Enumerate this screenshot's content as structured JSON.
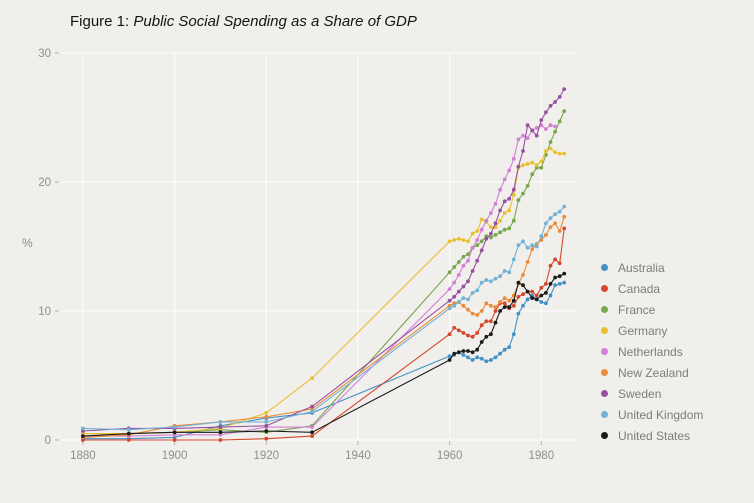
{
  "title": {
    "prefix": "Figure 1: ",
    "text": "Public Social Spending as a Share of GDP"
  },
  "colors": {
    "background": "#f1efec",
    "grid": "#fcfbfa",
    "tick_text": "#8e8e8e",
    "tick_mark": "#b5b2ad",
    "legend_text": "#7c7c7c",
    "title_text": "#141414"
  },
  "chart_data": {
    "type": "line",
    "title": "Figure 1: Public Social Spending as a Share of GDP",
    "xlabel": "",
    "ylabel": "%",
    "xlim": [
      1875,
      1988
    ],
    "ylim": [
      0,
      30
    ],
    "x_ticks": [
      1880,
      1900,
      1920,
      1940,
      1960,
      1980
    ],
    "y_ticks": [
      0,
      10,
      20,
      30
    ],
    "grid": true,
    "legend_position": "right",
    "series": [
      {
        "name": "Australia",
        "color": "#4292c6",
        "x": [
          1880,
          1890,
          1900,
          1910,
          1920,
          1930,
          1960,
          1961,
          1962,
          1963,
          1964,
          1965,
          1966,
          1967,
          1968,
          1969,
          1970,
          1971,
          1972,
          1973,
          1974,
          1975,
          1976,
          1977,
          1978,
          1979,
          1980,
          1981,
          1982,
          1983,
          1984,
          1985
        ],
        "y": [
          0.1,
          0.1,
          0.2,
          1.1,
          1.7,
          2.1,
          6.5,
          6.6,
          6.8,
          6.6,
          6.4,
          6.2,
          6.4,
          6.3,
          6.1,
          6.2,
          6.4,
          6.7,
          7.0,
          7.2,
          8.2,
          9.8,
          10.4,
          10.9,
          11.2,
          10.9,
          10.7,
          10.6,
          11.2,
          12.0,
          12.1,
          12.2
        ]
      },
      {
        "name": "Canada",
        "color": "#d5472c",
        "x": [
          1880,
          1890,
          1900,
          1910,
          1920,
          1930,
          1960,
          1961,
          1962,
          1963,
          1964,
          1965,
          1966,
          1967,
          1968,
          1969,
          1970,
          1971,
          1972,
          1973,
          1974,
          1975,
          1976,
          1977,
          1978,
          1979,
          1980,
          1981,
          1982,
          1983,
          1984,
          1985
        ],
        "y": [
          0.0,
          0.0,
          0.0,
          0.0,
          0.1,
          0.3,
          8.2,
          8.7,
          8.5,
          8.3,
          8.1,
          8.0,
          8.3,
          8.9,
          9.2,
          9.2,
          10.0,
          10.6,
          10.6,
          10.2,
          10.4,
          11.1,
          11.3,
          11.5,
          11.5,
          11.2,
          11.8,
          12.1,
          13.5,
          14.0,
          13.7,
          16.4
        ]
      },
      {
        "name": "France",
        "color": "#76a84b",
        "x": [
          1880,
          1890,
          1900,
          1910,
          1920,
          1930,
          1960,
          1961,
          1962,
          1963,
          1964,
          1965,
          1966,
          1967,
          1968,
          1969,
          1970,
          1971,
          1972,
          1973,
          1974,
          1975,
          1976,
          1977,
          1978,
          1979,
          1980,
          1981,
          1982,
          1983,
          1984,
          1985
        ],
        "y": [
          0.5,
          0.5,
          0.6,
          0.8,
          0.6,
          1.1,
          13.0,
          13.4,
          13.8,
          14.2,
          14.4,
          14.9,
          15.1,
          15.4,
          15.8,
          15.7,
          15.9,
          16.1,
          16.3,
          16.4,
          17.0,
          18.6,
          19.1,
          19.7,
          20.6,
          21.1,
          21.1,
          22.1,
          23.1,
          23.9,
          24.7,
          25.5
        ]
      },
      {
        "name": "Germany",
        "color": "#e7c12f",
        "x": [
          1880,
          1890,
          1900,
          1910,
          1920,
          1930,
          1960,
          1961,
          1962,
          1963,
          1964,
          1965,
          1966,
          1967,
          1968,
          1969,
          1970,
          1971,
          1972,
          1973,
          1974,
          1975,
          1976,
          1977,
          1978,
          1979,
          1980,
          1981,
          1982,
          1983,
          1984,
          1985
        ],
        "y": [
          0.5,
          0.5,
          0.6,
          0.9,
          2.1,
          4.8,
          15.4,
          15.5,
          15.6,
          15.5,
          15.4,
          16.0,
          16.2,
          17.1,
          16.9,
          16.5,
          16.5,
          17.0,
          17.6,
          17.8,
          19.0,
          21.1,
          21.3,
          21.4,
          21.5,
          21.3,
          21.6,
          22.4,
          22.6,
          22.3,
          22.2,
          22.2
        ]
      },
      {
        "name": "Netherlands",
        "color": "#d27fd8",
        "x": [
          1880,
          1890,
          1900,
          1910,
          1920,
          1930,
          1960,
          1961,
          1962,
          1963,
          1964,
          1965,
          1966,
          1967,
          1968,
          1969,
          1970,
          1971,
          1972,
          1973,
          1974,
          1975,
          1976,
          1977,
          1978,
          1979,
          1980,
          1981,
          1982,
          1983
        ],
        "y": [
          0.3,
          0.3,
          0.4,
          0.4,
          1.0,
          1.0,
          11.7,
          12.2,
          12.8,
          13.5,
          13.9,
          14.9,
          15.5,
          16.3,
          17.0,
          17.6,
          18.3,
          19.4,
          20.2,
          20.9,
          21.8,
          23.3,
          23.6,
          23.4,
          24.0,
          24.2,
          24.4,
          24.1,
          24.4,
          24.3
        ]
      },
      {
        "name": "New Zealand",
        "color": "#ea8c3a",
        "x": [
          1880,
          1890,
          1900,
          1910,
          1920,
          1930,
          1960,
          1961,
          1962,
          1963,
          1964,
          1965,
          1966,
          1967,
          1968,
          1969,
          1970,
          1971,
          1972,
          1973,
          1974,
          1975,
          1976,
          1977,
          1978,
          1979,
          1980,
          1981,
          1982,
          1983,
          1984,
          1985
        ],
        "y": [
          0.2,
          0.4,
          1.1,
          1.4,
          1.8,
          2.4,
          10.4,
          10.6,
          10.7,
          10.4,
          10.1,
          9.8,
          9.7,
          10.0,
          10.6,
          10.4,
          10.3,
          10.7,
          11.0,
          10.8,
          11.2,
          12.1,
          12.8,
          13.8,
          14.8,
          15.2,
          15.5,
          15.9,
          16.5,
          16.8,
          16.2,
          17.3
        ]
      },
      {
        "name": "Sweden",
        "color": "#9751a1",
        "x": [
          1880,
          1890,
          1900,
          1910,
          1920,
          1930,
          1960,
          1961,
          1962,
          1963,
          1964,
          1965,
          1966,
          1967,
          1968,
          1969,
          1970,
          1971,
          1972,
          1973,
          1974,
          1975,
          1976,
          1977,
          1978,
          1979,
          1980,
          1981,
          1982,
          1983,
          1984,
          1985
        ],
        "y": [
          0.7,
          0.9,
          0.9,
          1.0,
          1.1,
          2.6,
          10.8,
          11.1,
          11.5,
          11.9,
          12.3,
          13.1,
          13.9,
          14.7,
          15.6,
          16.0,
          16.8,
          17.8,
          18.5,
          18.7,
          19.4,
          21.2,
          22.4,
          24.4,
          24.0,
          23.6,
          24.8,
          25.4,
          25.9,
          26.2,
          26.6,
          27.2
        ]
      },
      {
        "name": "United Kingdom",
        "color": "#72b2d7",
        "x": [
          1880,
          1890,
          1900,
          1910,
          1920,
          1930,
          1960,
          1961,
          1962,
          1963,
          1964,
          1965,
          1966,
          1967,
          1968,
          1969,
          1970,
          1971,
          1972,
          1973,
          1974,
          1975,
          1976,
          1977,
          1978,
          1979,
          1980,
          1981,
          1982,
          1983,
          1984,
          1985
        ],
        "y": [
          0.9,
          0.8,
          1.0,
          1.4,
          1.4,
          2.2,
          10.2,
          10.4,
          10.7,
          11.0,
          10.9,
          11.4,
          11.6,
          12.2,
          12.4,
          12.3,
          12.5,
          12.7,
          13.1,
          13.0,
          14.0,
          15.1,
          15.4,
          14.9,
          15.1,
          15.0,
          15.8,
          16.8,
          17.2,
          17.5,
          17.7,
          18.1
        ]
      },
      {
        "name": "United States",
        "color": "#1b1b1b",
        "x": [
          1880,
          1890,
          1900,
          1910,
          1920,
          1930,
          1960,
          1961,
          1962,
          1963,
          1964,
          1965,
          1966,
          1967,
          1968,
          1969,
          1970,
          1971,
          1972,
          1973,
          1974,
          1975,
          1976,
          1977,
          1978,
          1979,
          1980,
          1981,
          1982,
          1983,
          1984,
          1985
        ],
        "y": [
          0.3,
          0.5,
          0.6,
          0.6,
          0.7,
          0.6,
          6.2,
          6.7,
          6.8,
          6.9,
          6.9,
          6.8,
          7.0,
          7.6,
          8.0,
          8.2,
          9.1,
          10.0,
          10.3,
          10.3,
          10.8,
          12.2,
          12.0,
          11.5,
          11.0,
          10.9,
          11.2,
          11.4,
          12.1,
          12.6,
          12.7,
          12.9
        ]
      }
    ]
  }
}
